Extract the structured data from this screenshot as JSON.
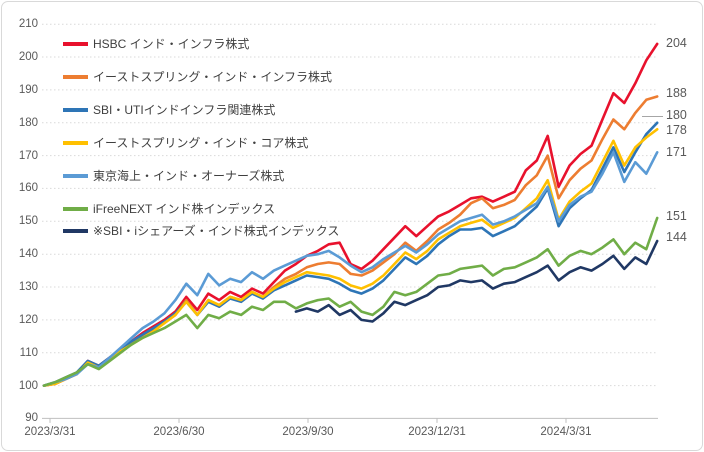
{
  "chart_data": {
    "type": "line",
    "title": "",
    "x_axis": {
      "tick_labels": [
        "2023/3/31",
        "2023/6/30",
        "2023/9/30",
        "2023/12/31",
        "2024/3/31"
      ],
      "start": "2023/3/31",
      "end": "2024/5/31"
    },
    "y_axis": {
      "min": 90,
      "max": 210,
      "step": 10
    },
    "sampling": "approx. weekly index values, start = 100",
    "grid": "horizontal dotted gridlines",
    "legend_position": "inside top-left, vertical list",
    "series": [
      {
        "name": "HSBC インド・インフラ株式",
        "color": "#E8112D",
        "end_label": "204",
        "values": [
          100,
          100.5,
          102,
          103.5,
          107.5,
          106,
          108.5,
          111,
          113.5,
          116,
          118,
          120,
          122.5,
          127,
          123,
          128,
          126,
          128.5,
          127,
          129.5,
          128,
          131.5,
          135,
          137,
          139.5,
          141,
          143,
          143.5,
          137,
          135.5,
          138,
          141.5,
          145,
          148.5,
          145.5,
          148.5,
          151.5,
          153,
          155,
          157,
          157.5,
          156,
          157.5,
          159,
          165.5,
          168.5,
          176,
          160.5,
          167,
          170.5,
          173,
          181,
          189,
          186,
          192,
          199,
          204
        ]
      },
      {
        "name": "イーストスプリング・インド・インフラ株式",
        "color": "#ED7D31",
        "end_label": "188",
        "values": [
          100,
          100.5,
          102,
          103.5,
          107,
          105.5,
          108,
          110.5,
          113,
          115,
          117,
          119,
          121.5,
          126,
          121.5,
          126,
          124.5,
          127,
          126,
          128.5,
          127,
          130,
          132.5,
          134,
          136,
          137,
          137.5,
          137,
          134,
          133.5,
          135,
          137.5,
          140,
          143.5,
          141,
          144,
          147.5,
          149.5,
          152,
          155.5,
          157,
          154,
          155,
          156.5,
          161,
          164,
          170,
          157,
          162.5,
          166,
          168.5,
          175,
          181,
          178,
          183,
          187,
          188
        ]
      },
      {
        "name": "SBI・UTIインドインフラ関連株式",
        "color": "#2E75B6",
        "end_label": "180",
        "values": [
          100,
          101,
          102.5,
          104,
          107.5,
          106,
          108.5,
          111,
          113.5,
          115.5,
          117.5,
          119.5,
          122,
          125.5,
          121.5,
          125.5,
          124,
          126.5,
          125.5,
          128,
          126.5,
          129,
          130.5,
          132,
          133.5,
          133,
          132.5,
          131,
          129,
          128,
          129.5,
          132,
          135.5,
          139,
          137,
          139.5,
          143,
          145.5,
          147.5,
          147.5,
          148,
          145.5,
          147,
          148.5,
          151.5,
          154.5,
          160,
          148.5,
          154,
          157,
          159.5,
          166,
          172.5,
          165,
          171,
          176.5,
          180
        ]
      },
      {
        "name": "イーストスプリング・インド・コア株式",
        "color": "#FFC000",
        "end_label": "178",
        "values": [
          100,
          100.5,
          102,
          103.5,
          107,
          105.5,
          108,
          110.5,
          112.5,
          114.5,
          116.5,
          119,
          121.5,
          125.5,
          121.5,
          126,
          124.5,
          127,
          126,
          128.5,
          127,
          129.5,
          131.5,
          133,
          134.5,
          134,
          133.5,
          132.5,
          130.5,
          129.5,
          131,
          133.5,
          137,
          140.5,
          138.5,
          141,
          144.5,
          146.5,
          148.5,
          149.5,
          150.5,
          148,
          149.5,
          151,
          154,
          157,
          162.5,
          150.5,
          156,
          159,
          161.5,
          168,
          174.5,
          167,
          172.5,
          175.5,
          178
        ]
      },
      {
        "name": "東京海上・インド・オーナーズ株式",
        "color": "#5B9BD5",
        "end_label": "171",
        "values": [
          100,
          101,
          102,
          103.5,
          106.5,
          105.5,
          108.5,
          111.5,
          114.5,
          117.5,
          119.5,
          122,
          126,
          131,
          127.5,
          134,
          130.5,
          132.5,
          131.5,
          134.5,
          132.5,
          135,
          136.5,
          138,
          139.5,
          140,
          141,
          139,
          136.5,
          134.5,
          136,
          138.5,
          140.5,
          142.5,
          140.5,
          143,
          146,
          148,
          150,
          151,
          152,
          149,
          150,
          151.5,
          153.5,
          155.5,
          160.5,
          150,
          155,
          157.5,
          159,
          164.5,
          171,
          162,
          168,
          164.5,
          171
        ]
      },
      {
        "name": "iFreeNEXT インド株インデックス",
        "color": "#70AD47",
        "end_label": "151",
        "values": [
          100,
          101,
          102.5,
          104,
          106.5,
          105,
          107.5,
          110,
          112.5,
          114.5,
          116,
          117.5,
          119.5,
          121.5,
          117.5,
          121.5,
          120.5,
          122.5,
          121.5,
          124,
          123,
          125.5,
          125.5,
          123.5,
          125,
          126,
          126.5,
          124,
          125.5,
          122.5,
          121.5,
          124,
          128.5,
          127.5,
          128.5,
          131,
          133.5,
          134,
          135.5,
          136,
          136.5,
          133.5,
          135.5,
          136,
          137.5,
          139,
          141.5,
          136.5,
          139.5,
          141,
          140,
          142,
          144.5,
          140,
          143.5,
          141.5,
          151
        ]
      },
      {
        "name": "※SBI・iシェアーズ・インド株式インデックス",
        "color": "#203864",
        "end_label": "144",
        "values": [
          null,
          null,
          null,
          null,
          null,
          null,
          null,
          null,
          null,
          null,
          null,
          null,
          null,
          null,
          null,
          null,
          null,
          null,
          null,
          null,
          null,
          null,
          null,
          122.5,
          123.5,
          122.5,
          124.5,
          121.5,
          123,
          120,
          119.5,
          122,
          125.5,
          124.5,
          126,
          127.5,
          130,
          130.5,
          132,
          131.5,
          132,
          129.5,
          131,
          131.5,
          133,
          134.5,
          136.5,
          132,
          134.5,
          136,
          135,
          137,
          139.5,
          135.5,
          139,
          137,
          144
        ]
      }
    ]
  }
}
